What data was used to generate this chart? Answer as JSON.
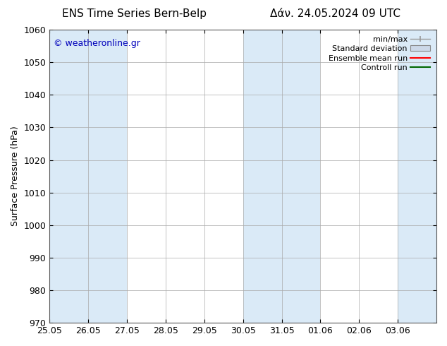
{
  "title_left": "ENS Time Series Bern-Belp",
  "title_right": "Δάν. 24.05.2024 09 UTC",
  "ylabel": "Surface Pressure (hPa)",
  "ylim": [
    970,
    1060
  ],
  "yticks": [
    970,
    980,
    990,
    1000,
    1010,
    1020,
    1030,
    1040,
    1050,
    1060
  ],
  "xtick_labels": [
    "25.05",
    "26.05",
    "27.05",
    "28.05",
    "29.05",
    "30.05",
    "31.05",
    "01.06",
    "02.06",
    "03.06"
  ],
  "watermark": "© weatheronline.gr",
  "watermark_color": "#0000bb",
  "bg_color": "#ffffff",
  "plot_bg_color": "#ffffff",
  "band_color": "#daeaf7",
  "shaded_intervals": [
    [
      0,
      1
    ],
    [
      1,
      2
    ],
    [
      5,
      6
    ],
    [
      6,
      7
    ],
    [
      9,
      10
    ]
  ],
  "legend_labels": [
    "min/max",
    "Standard deviation",
    "Ensemble mean run",
    "Controll run"
  ],
  "legend_colors_line": [
    "#999999",
    "#aabbcc",
    "#ff0000",
    "#006600"
  ],
  "title_fontsize": 11,
  "tick_fontsize": 9,
  "label_fontsize": 9,
  "figsize": [
    6.34,
    4.9
  ],
  "dpi": 100
}
